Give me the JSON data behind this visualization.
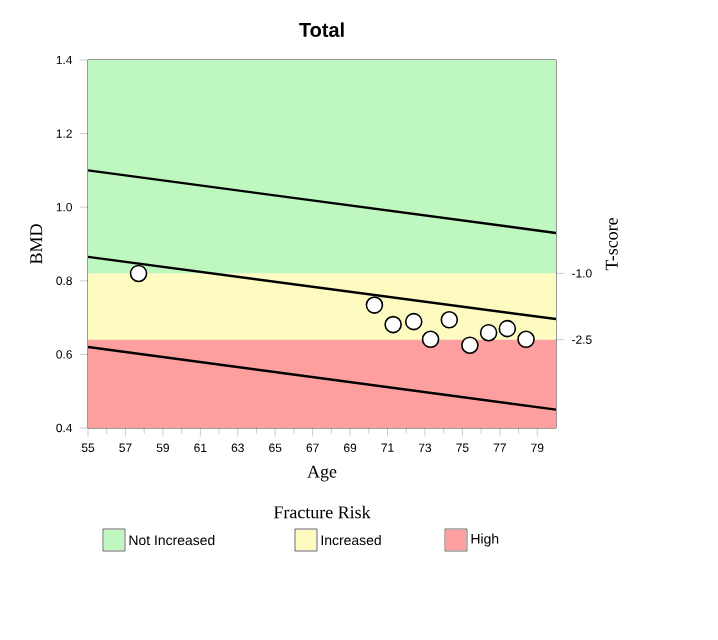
{
  "chart_data": {
    "type": "scatter",
    "title": "Total",
    "xlabel": "Age",
    "ylabel": "BMD",
    "y2label": "T-score",
    "legend_title": "Fracture Risk",
    "legend": "bottom",
    "xlim": [
      55,
      80
    ],
    "ylim": [
      0.4,
      1.4
    ],
    "y2lim": [
      -4.5,
      3.83
    ],
    "xticks": [
      55,
      57,
      59,
      61,
      63,
      65,
      67,
      69,
      71,
      73,
      75,
      77,
      79
    ],
    "yticks": [
      0.4,
      0.6,
      0.8,
      {
        "value": 1.0,
        "label": "1.0"
      },
      1.2,
      1.4
    ],
    "y2ticks": [
      {
        "value": -2.5,
        "label": "-2.5"
      },
      {
        "value": -1.0,
        "label": "-1.0"
      }
    ],
    "bands": [
      {
        "axis": "y",
        "from": 0.82,
        "to": 1.4,
        "label": "Not Increased",
        "color": "#bff7c0"
      },
      {
        "axis": "y",
        "from": 0.64,
        "to": 0.82,
        "label": "Increased",
        "color": "#fdfbc0"
      },
      {
        "axis": "y",
        "from": 0.4,
        "to": 0.64,
        "label": "High",
        "color": "#fe9f9f"
      }
    ],
    "series": [
      {
        "type": "line",
        "marker": "none",
        "color": "#000000",
        "x": [
          55,
          80
        ],
        "values": [
          1.1,
          0.93
        ]
      },
      {
        "type": "line",
        "marker": "none",
        "color": "#000000",
        "x": [
          55,
          80
        ],
        "values": [
          0.865,
          0.696
        ]
      },
      {
        "type": "line",
        "marker": "none",
        "color": "#000000",
        "x": [
          55,
          80
        ],
        "values": [
          0.62,
          0.45
        ]
      },
      {
        "marker": "circle",
        "color": "#000000",
        "x": [
          57.7,
          70.3,
          71.3,
          72.4,
          73.3,
          74.3,
          75.4,
          76.4,
          77.4,
          78.4
        ],
        "values": [
          0.82,
          0.734,
          0.681,
          0.689,
          0.641,
          0.694,
          0.625,
          0.659,
          0.67,
          0.641
        ]
      }
    ]
  }
}
